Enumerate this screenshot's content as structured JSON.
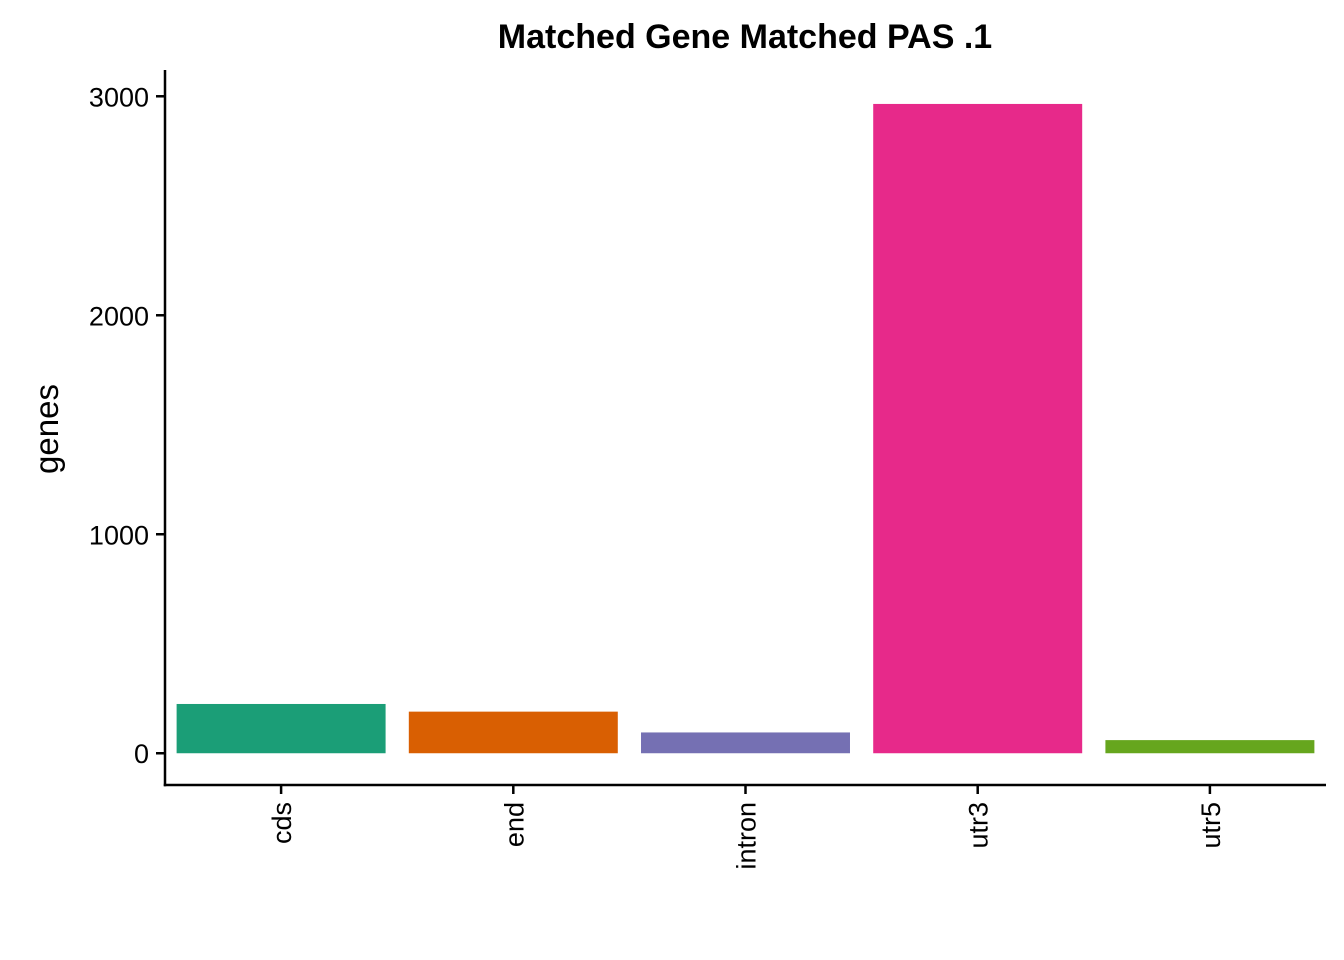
{
  "chart_data": {
    "type": "bar",
    "title": "Matched Gene Matched PAS .1",
    "xlabel": "",
    "ylabel": "genes",
    "categories": [
      "cds",
      "end",
      "intron",
      "utr3",
      "utr5"
    ],
    "values": [
      225,
      190,
      95,
      2965,
      60
    ],
    "colors": [
      "#1B9E77",
      "#D95F02",
      "#7570B3",
      "#E7298A",
      "#66A61E"
    ],
    "ylim": [
      -145,
      3120
    ],
    "yticks": [
      0,
      1000,
      2000,
      3000
    ],
    "grid": false,
    "legend": "none"
  }
}
